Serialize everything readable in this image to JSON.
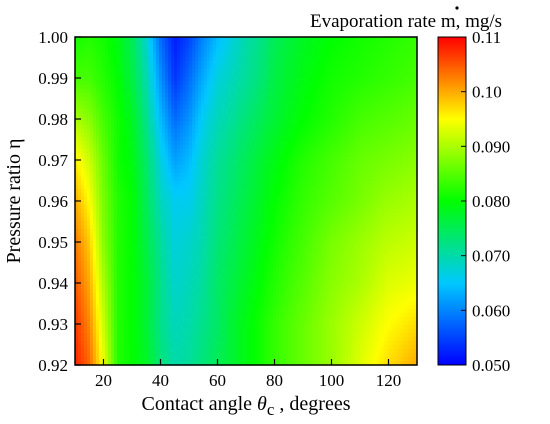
{
  "chart_data": {
    "type": "heatmap",
    "title": "",
    "xlabel": {
      "prefix": "Contact angle ",
      "symbol": "θ",
      "subscript": "c",
      "suffix": " , degrees"
    },
    "ylabel": "Pressure ratio η",
    "xlim": [
      10,
      130
    ],
    "ylim": [
      0.92,
      1.0
    ],
    "xticks": [
      20,
      40,
      60,
      80,
      100,
      120
    ],
    "xtick_labels": [
      "20",
      "40",
      "60",
      "80",
      "100",
      "120"
    ],
    "yticks": [
      0.92,
      0.93,
      0.94,
      0.95,
      0.96,
      0.97,
      0.98,
      0.99,
      1.0
    ],
    "ytick_labels": [
      "0.92",
      "0.93",
      "0.94",
      "0.95",
      "0.96",
      "0.97",
      "0.98",
      "0.99",
      "1.00"
    ],
    "colorbar": {
      "title": "Evaporation rate m, mg/s",
      "title_base": "Evaporation rate ",
      "title_symbol": "m",
      "title_unit": ", mg/s",
      "range": [
        0.05,
        0.11
      ],
      "ticks": [
        0.05,
        0.06,
        0.07,
        0.08,
        0.09,
        0.1,
        0.11
      ],
      "tick_labels": [
        "0.050",
        "0.060",
        "0.070",
        "0.080",
        "0.090",
        "0.10",
        "0.11"
      ],
      "colormap": [
        "#0000ff",
        "#00c8ff",
        "#00ff00",
        "#ffff00",
        "#ff0000"
      ]
    },
    "grid": false,
    "legend": "none",
    "field_samples": {
      "x": [
        10,
        15,
        20,
        25,
        30,
        35,
        40,
        45,
        50,
        55,
        60,
        65,
        70,
        75,
        80,
        90,
        100,
        110,
        120,
        130
      ],
      "y": [
        0.92,
        0.93,
        0.94,
        0.95,
        0.96,
        0.97,
        0.98,
        0.99,
        1.0
      ],
      "z": [
        [
          0.108,
          0.104,
          0.094,
          0.082,
          0.08,
          0.078,
          0.073,
          0.07,
          0.071,
          0.073,
          0.075,
          0.077,
          0.079,
          0.081,
          0.083,
          0.086,
          0.089,
          0.093,
          0.097,
          0.1
        ],
        [
          0.107,
          0.102,
          0.092,
          0.082,
          0.08,
          0.077,
          0.072,
          0.069,
          0.07,
          0.072,
          0.074,
          0.077,
          0.079,
          0.081,
          0.083,
          0.086,
          0.089,
          0.092,
          0.095,
          0.097
        ],
        [
          0.105,
          0.1,
          0.09,
          0.082,
          0.08,
          0.077,
          0.072,
          0.068,
          0.069,
          0.071,
          0.074,
          0.076,
          0.078,
          0.08,
          0.082,
          0.085,
          0.088,
          0.09,
          0.093,
          0.094
        ],
        [
          0.103,
          0.098,
          0.088,
          0.082,
          0.08,
          0.076,
          0.071,
          0.067,
          0.068,
          0.07,
          0.073,
          0.075,
          0.077,
          0.079,
          0.081,
          0.084,
          0.087,
          0.089,
          0.091,
          0.092
        ],
        [
          0.1,
          0.095,
          0.087,
          0.082,
          0.08,
          0.075,
          0.069,
          0.066,
          0.066,
          0.069,
          0.072,
          0.074,
          0.076,
          0.078,
          0.08,
          0.083,
          0.085,
          0.087,
          0.089,
          0.09
        ],
        [
          0.096,
          0.092,
          0.086,
          0.081,
          0.079,
          0.074,
          0.067,
          0.062,
          0.064,
          0.068,
          0.071,
          0.073,
          0.075,
          0.077,
          0.079,
          0.082,
          0.084,
          0.086,
          0.087,
          0.088
        ],
        [
          0.09,
          0.088,
          0.084,
          0.081,
          0.078,
          0.072,
          0.064,
          0.058,
          0.061,
          0.066,
          0.069,
          0.071,
          0.073,
          0.075,
          0.077,
          0.08,
          0.082,
          0.084,
          0.085,
          0.086
        ],
        [
          0.084,
          0.084,
          0.082,
          0.08,
          0.076,
          0.07,
          0.061,
          0.054,
          0.058,
          0.063,
          0.067,
          0.069,
          0.071,
          0.073,
          0.076,
          0.079,
          0.081,
          0.082,
          0.083,
          0.084
        ],
        [
          0.081,
          0.082,
          0.081,
          0.079,
          0.075,
          0.068,
          0.058,
          0.052,
          0.055,
          0.06,
          0.064,
          0.067,
          0.07,
          0.072,
          0.075,
          0.078,
          0.08,
          0.081,
          0.082,
          0.083
        ]
      ]
    }
  }
}
